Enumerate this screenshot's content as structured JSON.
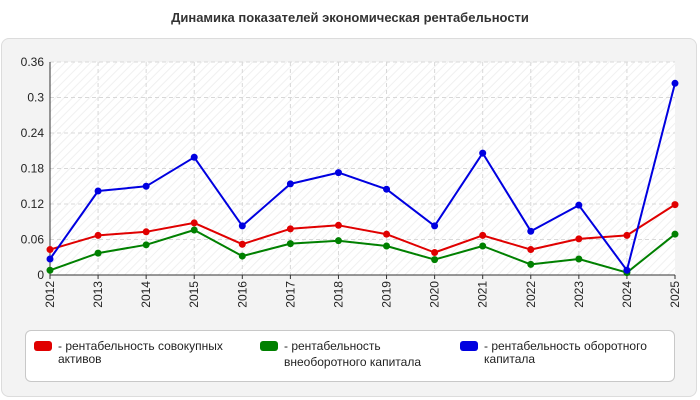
{
  "title": "Динамика показателей экономическая рентабельности",
  "chart_data": {
    "type": "line",
    "categories": [
      "2012",
      "2013",
      "2014",
      "2015",
      "2016",
      "2017",
      "2018",
      "2019",
      "2020",
      "2021",
      "2022",
      "2023",
      "2024",
      "2025"
    ],
    "ylim": [
      0,
      0.36
    ],
    "yticks": [
      "0",
      "0.06",
      "0.12",
      "0.18",
      "0.24",
      "0.3",
      "0.36"
    ],
    "grid": true,
    "legend_position": "bottom",
    "series": [
      {
        "name": "рентабельность совокупных активов",
        "color": "#e00000",
        "values": [
          0.043,
          0.067,
          0.073,
          0.088,
          0.052,
          0.078,
          0.084,
          0.069,
          0.038,
          0.067,
          0.043,
          0.061,
          0.067,
          0.119
        ]
      },
      {
        "name": "рентабельность внеоборотного капитала",
        "color": "#008000",
        "values": [
          0.008,
          0.037,
          0.051,
          0.076,
          0.032,
          0.053,
          0.058,
          0.049,
          0.026,
          0.049,
          0.018,
          0.027,
          0.004,
          0.069
        ]
      },
      {
        "name": "рентабельность оборотного капитала",
        "color": "#0000e0",
        "values": [
          0.027,
          0.142,
          0.15,
          0.199,
          0.083,
          0.154,
          0.173,
          0.145,
          0.083,
          0.206,
          0.074,
          0.118,
          0.008,
          0.324
        ]
      }
    ]
  },
  "legend": {
    "items": [
      {
        "label_line1": "- рентабельность совокупных",
        "label_line2": "активов"
      },
      {
        "label_line1": "- рентабельность",
        "label_line2": "внеоборотного капитала"
      },
      {
        "label_line1": "- рентабельность оборотного",
        "label_line2": "капитала"
      }
    ]
  }
}
